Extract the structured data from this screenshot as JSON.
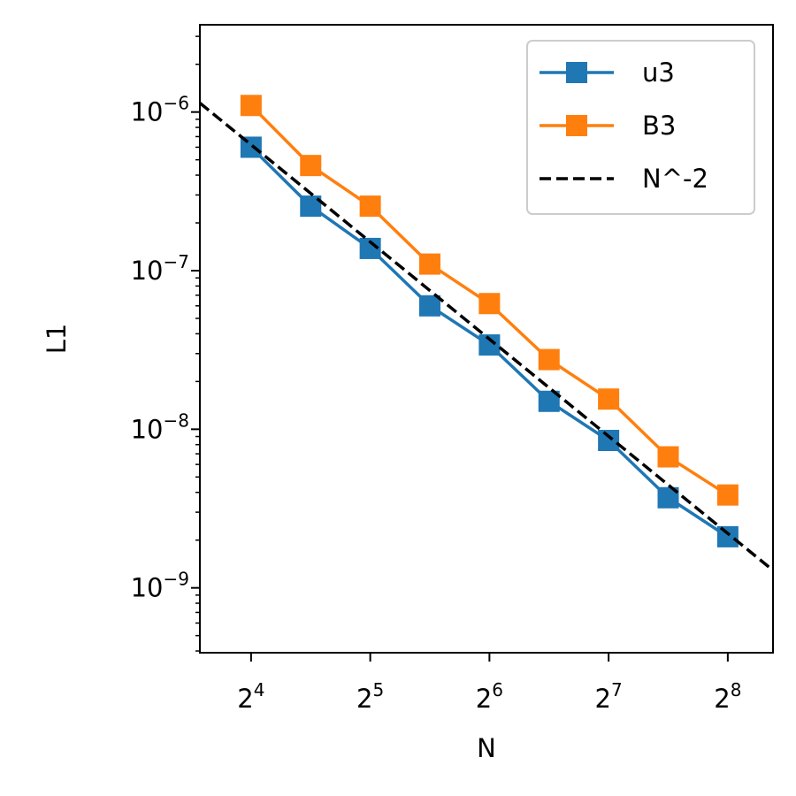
{
  "chart_data": {
    "type": "line",
    "xlabel": "N",
    "ylabel": "L1",
    "x_scale": "log2",
    "y_scale": "log10",
    "xlim": [
      11.88,
      333.0
    ],
    "ylim": [
      3.9e-10,
      3.55e-06
    ],
    "x_ticks": [
      {
        "value": 16,
        "base": "2",
        "exp": "4"
      },
      {
        "value": 32,
        "base": "2",
        "exp": "5"
      },
      {
        "value": 64,
        "base": "2",
        "exp": "6"
      },
      {
        "value": 128,
        "base": "2",
        "exp": "7"
      },
      {
        "value": 256,
        "base": "2",
        "exp": "8"
      }
    ],
    "y_ticks": [
      {
        "value": 1e-06,
        "base": "10",
        "exp": "−6"
      },
      {
        "value": 1e-07,
        "base": "10",
        "exp": "−7"
      },
      {
        "value": 1e-08,
        "base": "10",
        "exp": "−8"
      },
      {
        "value": 1e-09,
        "base": "10",
        "exp": "−9"
      }
    ],
    "grid": false,
    "legend_position": "top-right",
    "series": [
      {
        "name": "u3",
        "color": "#1f77b4",
        "marker": "square",
        "style": "solid",
        "x": [
          16,
          22.63,
          32,
          45.25,
          64,
          90.51,
          128,
          181.02,
          256
        ],
        "y": [
          6e-07,
          2.55e-07,
          1.38e-07,
          6e-08,
          3.4e-08,
          1.5e-08,
          8.5e-09,
          3.7e-09,
          2.1e-09
        ]
      },
      {
        "name": "B3",
        "color": "#ff7f0e",
        "marker": "square",
        "style": "solid",
        "x": [
          16,
          22.63,
          32,
          45.25,
          64,
          90.51,
          128,
          181.02,
          256
        ],
        "y": [
          1.1e-06,
          4.6e-07,
          2.55e-07,
          1.1e-07,
          6.2e-08,
          2.75e-08,
          1.55e-08,
          6.7e-09,
          3.85e-09
        ]
      },
      {
        "name": "N^-2",
        "color": "#000000",
        "marker": "none",
        "style": "dashed",
        "x": [
          11.88,
          333.0
        ],
        "y": [
          1.14e-06,
          1.29e-09
        ]
      }
    ]
  }
}
